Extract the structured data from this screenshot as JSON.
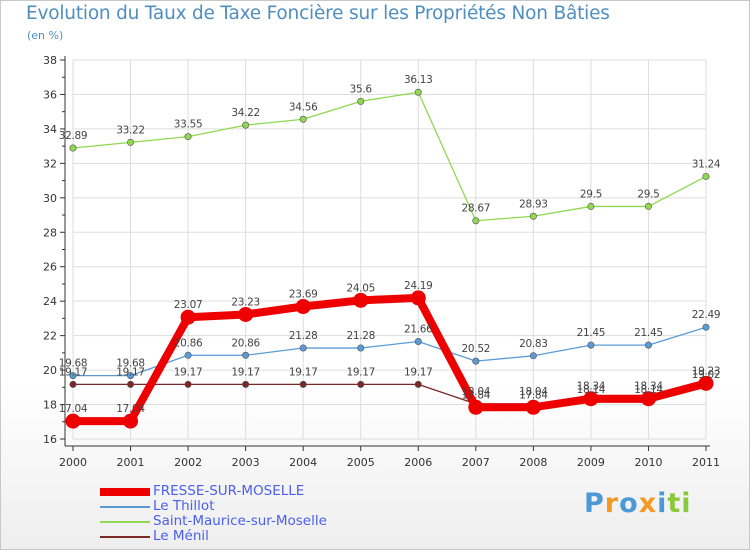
{
  "title": "Evolution du Taux de Taxe Foncière sur les Propriétés Non Bâties",
  "unit": "(en %)",
  "logo": "Proxiti",
  "chart_data": {
    "type": "line",
    "categories": [
      "2000",
      "2001",
      "2002",
      "2003",
      "2004",
      "2005",
      "2006",
      "2007",
      "2008",
      "2009",
      "2010",
      "2011"
    ],
    "ylim": [
      16,
      38
    ],
    "yticks": [
      "16",
      "18",
      "20",
      "22",
      "24",
      "26",
      "28",
      "30",
      "32",
      "34",
      "36",
      "38"
    ],
    "grid": true,
    "legend_position": "bottom-left",
    "series": [
      {
        "name": "FRESSE-SUR-MOSELLE",
        "color": "#ee0000",
        "values": [
          17.04,
          17.04,
          23.07,
          23.23,
          23.69,
          24.05,
          24.19,
          17.84,
          17.84,
          18.34,
          18.34,
          19.23
        ],
        "labels": [
          "17.04",
          "17.04",
          "23.07",
          "23.23",
          "23.69",
          "24.05",
          "24.19",
          "17.84",
          "17.84",
          "18.34",
          "18.34",
          "19.23"
        ]
      },
      {
        "name": "Le Thillot",
        "color": "#5b9bd5",
        "values": [
          19.68,
          19.68,
          20.86,
          20.86,
          21.28,
          21.28,
          21.66,
          20.52,
          20.83,
          21.45,
          21.45,
          22.49
        ],
        "labels": [
          "19.68",
          "19.68",
          "20.86",
          "20.86",
          "21.28",
          "21.28",
          "21.66",
          "20.52",
          "20.83",
          "21.45",
          "21.45",
          "22.49"
        ]
      },
      {
        "name": "Saint-Maurice-sur-Moselle",
        "color": "#90d850",
        "values": [
          32.89,
          33.22,
          33.55,
          34.22,
          34.56,
          35.6,
          36.13,
          28.67,
          28.93,
          29.5,
          29.5,
          31.24
        ],
        "labels": [
          "32.89",
          "33.22",
          "33.55",
          "34.22",
          "34.56",
          "35.6",
          "36.13",
          "28.67",
          "28.93",
          "29.5",
          "29.5",
          "31.24"
        ]
      },
      {
        "name": "Le Ménil",
        "color": "#7a2828",
        "values": [
          19.17,
          19.17,
          19.17,
          19.17,
          19.17,
          19.17,
          19.17,
          18.04,
          18.04,
          18.14,
          18.14,
          19.02
        ],
        "labels": [
          "19.17",
          "19.17",
          "19.17",
          "19.17",
          "19.17",
          "19.17",
          "19.17",
          "18.04",
          "18.04",
          "18.14",
          "18.14",
          "19.02"
        ]
      }
    ]
  }
}
